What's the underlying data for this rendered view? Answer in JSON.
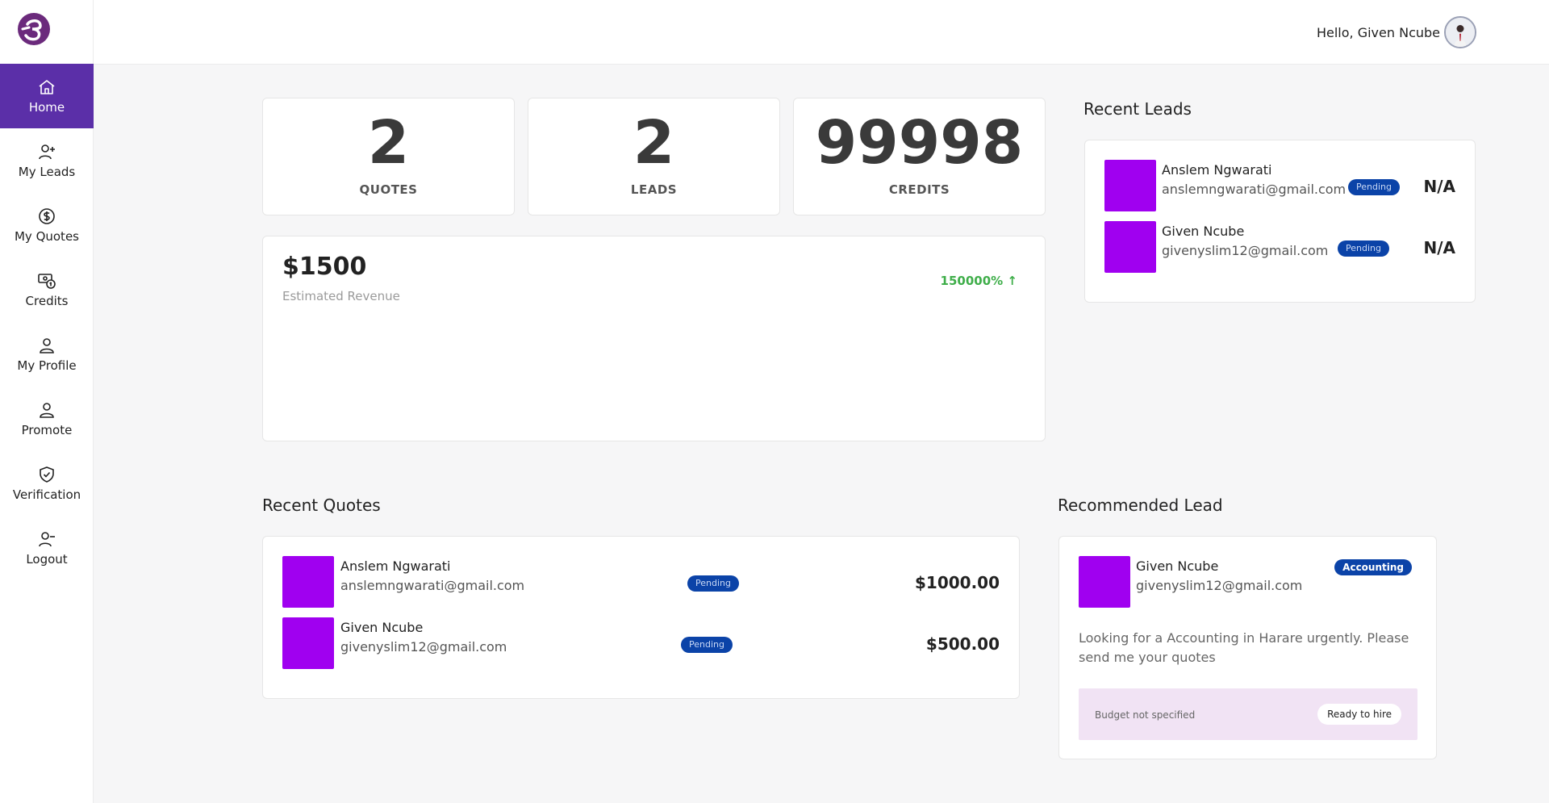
{
  "header": {
    "greeting": "Hello, Given Ncube"
  },
  "sidebar": {
    "items": [
      {
        "label": "Home",
        "icon": "home-icon",
        "active": true
      },
      {
        "label": "My Leads",
        "icon": "user-plus-icon"
      },
      {
        "label": "My Quotes",
        "icon": "dollar-circle-icon"
      },
      {
        "label": "Credits",
        "icon": "credits-icon"
      },
      {
        "label": "My Profile",
        "icon": "user-icon"
      },
      {
        "label": "Promote",
        "icon": "user-icon"
      },
      {
        "label": "Verification",
        "icon": "shield-check-icon"
      },
      {
        "label": "Logout",
        "icon": "user-minus-icon"
      }
    ]
  },
  "stats": [
    {
      "value": "2",
      "label": "QUOTES"
    },
    {
      "value": "2",
      "label": "LEADS"
    },
    {
      "value": "99998",
      "label": "CREDITS"
    }
  ],
  "revenue": {
    "amount": "$1500",
    "label": "Estimated Revenue",
    "growth": "150000% ↑"
  },
  "recent_leads": {
    "title": "Recent Leads",
    "items": [
      {
        "name": "Anslem Ngwarati",
        "email": "anslemngwarati@gmail.com",
        "status": "Pending",
        "value": "N/A"
      },
      {
        "name": "Given Ncube",
        "email": "givenyslim12@gmail.com",
        "status": "Pending",
        "value": "N/A"
      }
    ]
  },
  "recent_quotes": {
    "title": "Recent Quotes",
    "items": [
      {
        "name": "Anslem Ngwarati",
        "email": "anslemngwarati@gmail.com",
        "status": "Pending",
        "amount": "$1000.00"
      },
      {
        "name": "Given Ncube",
        "email": "givenyslim12@gmail.com",
        "status": "Pending",
        "amount": "$500.00"
      }
    ]
  },
  "recommended_lead": {
    "title": "Recommended Lead",
    "name": "Given Ncube",
    "email": "givenyslim12@gmail.com",
    "category": "Accounting",
    "description": "Looking for a Accounting in Harare urgently. Please send me your quotes",
    "budget": "Budget not specified",
    "action": "Ready to hire"
  },
  "colors": {
    "primary": "#5b2fa8",
    "thumb": "#a000f0",
    "badge": "#0b43a8",
    "growth": "#3fae4a",
    "budget_bg": "#f1e3f4"
  }
}
